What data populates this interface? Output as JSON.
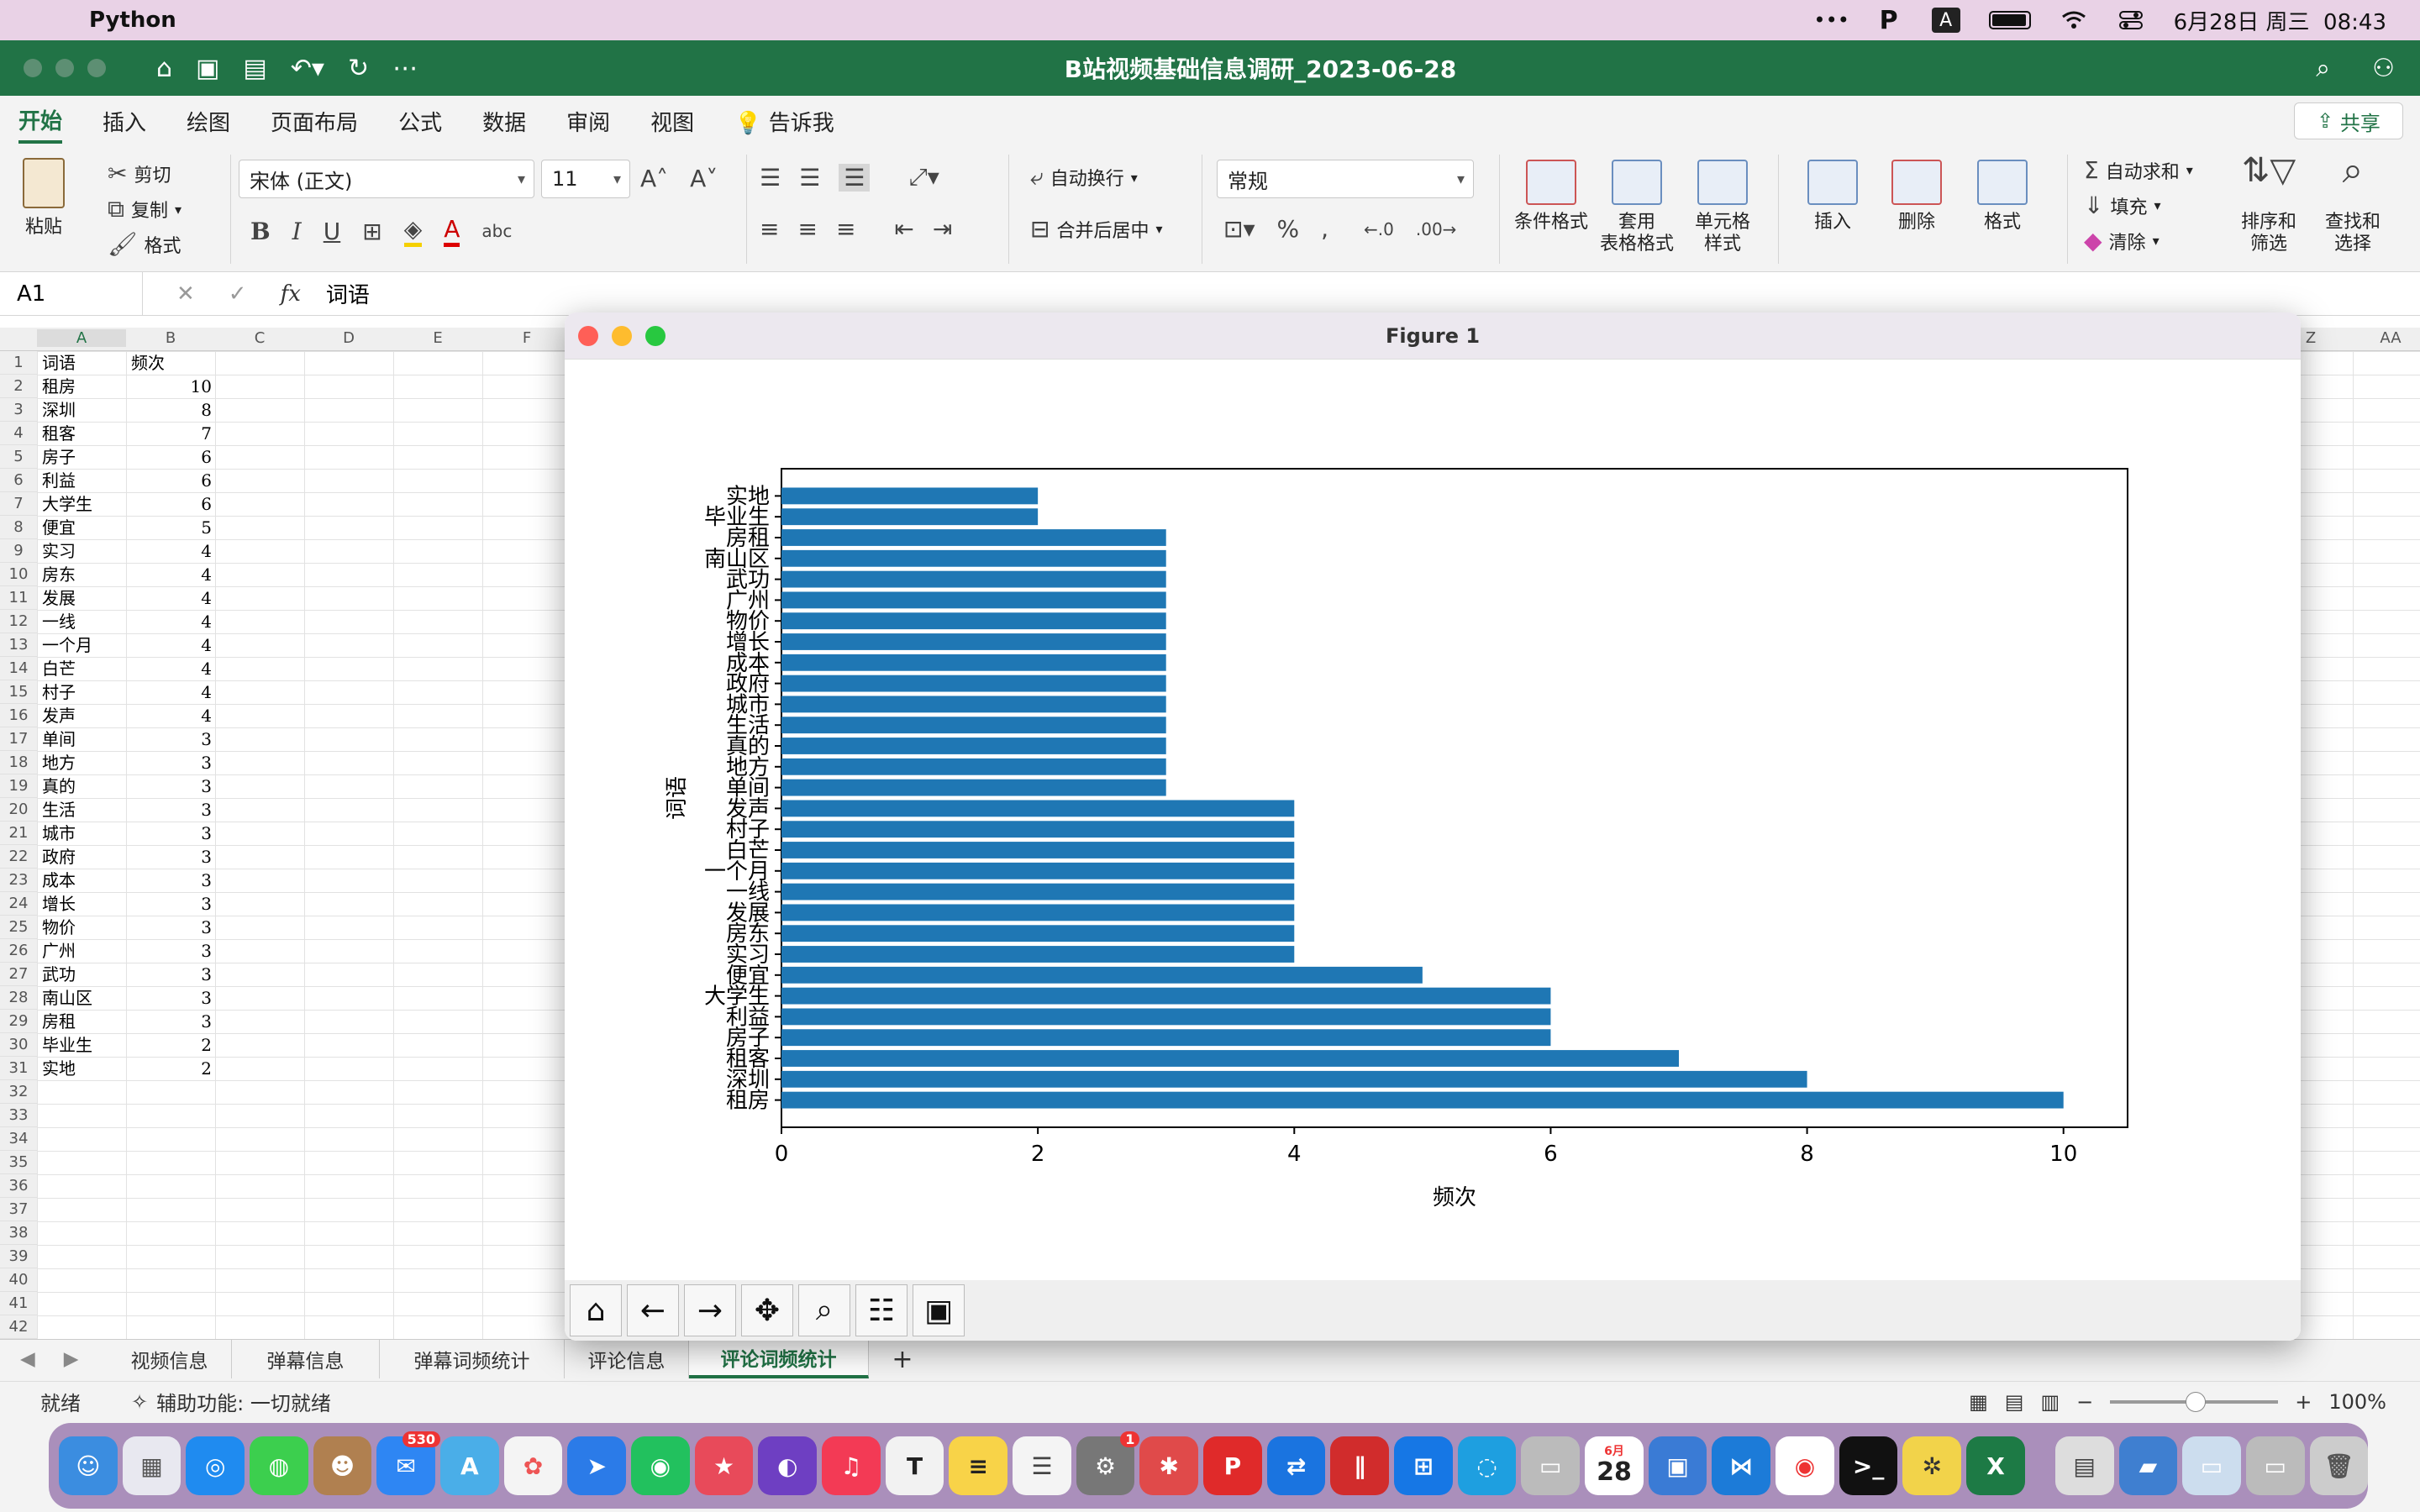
{
  "menubar": {
    "app": "Python",
    "clock": "6月28日 周三  08:43"
  },
  "excel": {
    "doc_title": "B站视频基础信息调研_2023-06-28",
    "tabs": [
      "开始",
      "插入",
      "绘图",
      "页面布局",
      "公式",
      "数据",
      "审阅",
      "视图",
      "告诉我"
    ],
    "share": "共享",
    "ribbon": {
      "paste": "粘贴",
      "cut": "剪切",
      "copy": "复制",
      "format_painter": "格式",
      "font": "宋体 (正文)",
      "size": "11",
      "wrap": "自动换行",
      "merge": "合并后居中",
      "number_format": "常规",
      "cond_format": "条件格式",
      "table_format": "套用\n表格格式",
      "cell_style": "单元格\n样式",
      "insert": "插入",
      "delete": "删除",
      "format": "格式",
      "autosum": "自动求和",
      "fill": "填充",
      "clear": "清除",
      "sort": "排序和\n筛选",
      "find": "查找和\n选择"
    },
    "namebox": "A1",
    "formula": "词语",
    "columns": [
      "A",
      "B",
      "C",
      "D",
      "E",
      "F"
    ],
    "right_columns": [
      "Z",
      "AA"
    ],
    "rows": [
      [
        "词语",
        "频次"
      ],
      [
        "租房",
        "10"
      ],
      [
        "深圳",
        "8"
      ],
      [
        "租客",
        "7"
      ],
      [
        "房子",
        "6"
      ],
      [
        "利益",
        "6"
      ],
      [
        "大学生",
        "6"
      ],
      [
        "便宜",
        "5"
      ],
      [
        "实习",
        "4"
      ],
      [
        "房东",
        "4"
      ],
      [
        "发展",
        "4"
      ],
      [
        "一线",
        "4"
      ],
      [
        "一个月",
        "4"
      ],
      [
        "白芒",
        "4"
      ],
      [
        "村子",
        "4"
      ],
      [
        "发声",
        "4"
      ],
      [
        "单间",
        "3"
      ],
      [
        "地方",
        "3"
      ],
      [
        "真的",
        "3"
      ],
      [
        "生活",
        "3"
      ],
      [
        "城市",
        "3"
      ],
      [
        "政府",
        "3"
      ],
      [
        "成本",
        "3"
      ],
      [
        "增长",
        "3"
      ],
      [
        "物价",
        "3"
      ],
      [
        "广州",
        "3"
      ],
      [
        "武功",
        "3"
      ],
      [
        "南山区",
        "3"
      ],
      [
        "房租",
        "3"
      ],
      [
        "毕业生",
        "2"
      ],
      [
        "实地",
        "2"
      ],
      [
        "",
        ""
      ],
      [
        "",
        ""
      ],
      [
        "",
        ""
      ],
      [
        "",
        ""
      ],
      [
        "",
        ""
      ],
      [
        "",
        ""
      ],
      [
        "",
        ""
      ],
      [
        "",
        ""
      ],
      [
        "",
        ""
      ],
      [
        "",
        ""
      ],
      [
        "",
        ""
      ]
    ],
    "sheets": [
      "视频信息",
      "弹幕信息",
      "弹幕词频统计",
      "评论信息",
      "评论词频统计"
    ],
    "active_sheet": 4,
    "status": "就绪",
    "accessibility": "辅助功能: 一切就绪",
    "zoom": "100%"
  },
  "figure": {
    "title": "Figure 1"
  },
  "chart_data": {
    "type": "bar",
    "orientation": "horizontal",
    "categories": [
      "租房",
      "深圳",
      "租客",
      "房子",
      "利益",
      "大学生",
      "便宜",
      "实习",
      "房东",
      "发展",
      "一线",
      "一个月",
      "白芒",
      "村子",
      "发声",
      "单间",
      "地方",
      "真的",
      "生活",
      "城市",
      "政府",
      "成本",
      "增长",
      "物价",
      "广州",
      "武功",
      "南山区",
      "房租",
      "毕业生",
      "实地"
    ],
    "values": [
      10,
      8,
      7,
      6,
      6,
      6,
      5,
      4,
      4,
      4,
      4,
      4,
      4,
      4,
      4,
      3,
      3,
      3,
      3,
      3,
      3,
      3,
      3,
      3,
      3,
      3,
      3,
      3,
      2,
      2
    ],
    "xlabel": "频次",
    "ylabel": "词语",
    "xticks": [
      "0",
      "2",
      "4",
      "6",
      "8",
      "10"
    ],
    "xlim": [
      0,
      10.5
    ],
    "bar_color": "#1f77b4",
    "grid": false
  },
  "dock_badges": {
    "mail": "530",
    "settings": "1"
  },
  "dock_calendar": {
    "month": "6月",
    "day": "28"
  }
}
